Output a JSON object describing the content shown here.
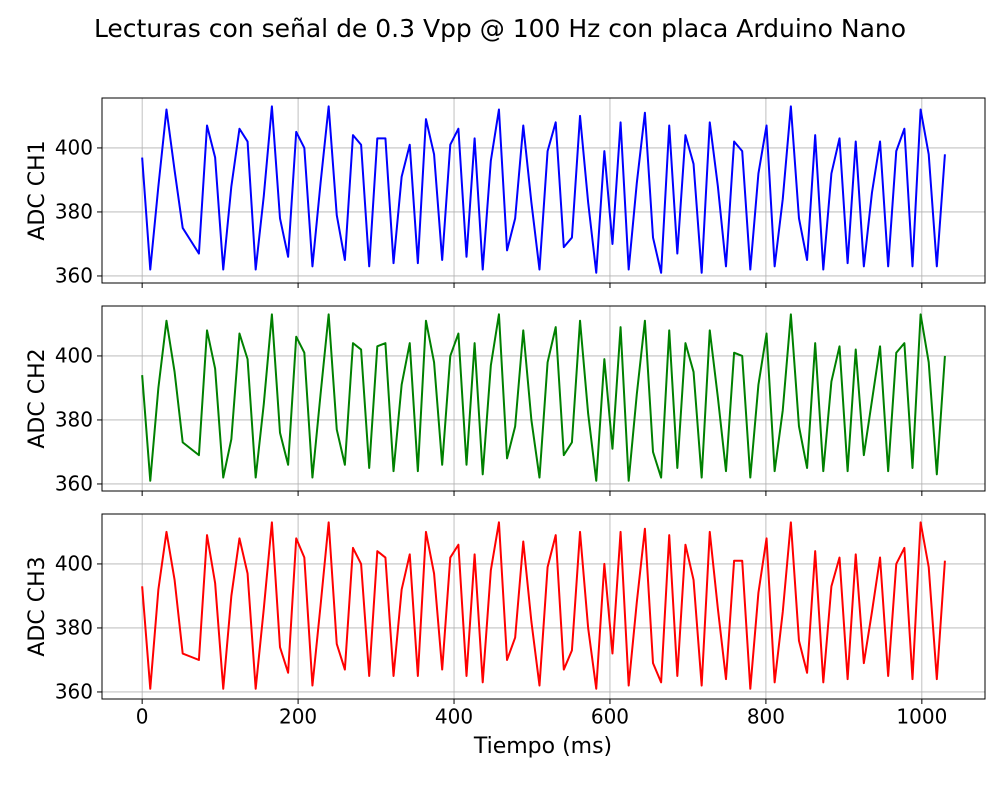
{
  "chart_data": {
    "type": "line",
    "subplots": true,
    "grid": true,
    "title": "Lecturas con señal de 0.3 Vpp @ 100 Hz con placa Arduino Nano",
    "xlabel": "Tiempo (ms)",
    "x": [
      0,
      10.4,
      20.8,
      31.2,
      41.6,
      52,
      62.4,
      72.8,
      83.2,
      93.6,
      104,
      114.4,
      124.8,
      135.2,
      145.6,
      156,
      166.4,
      176.8,
      187.2,
      197.6,
      208,
      218.4,
      228.8,
      239.2,
      249.6,
      260,
      270.4,
      280.8,
      291.2,
      301.6,
      312,
      322.4,
      332.8,
      343.2,
      353.6,
      364,
      374.4,
      384.8,
      395.2,
      405.6,
      416,
      426.4,
      436.8,
      447.2,
      457.6,
      468,
      478.4,
      488.8,
      499.2,
      509.6,
      520,
      530.4,
      540.8,
      551.2,
      561.6,
      572,
      582.4,
      592.8,
      603.2,
      613.6,
      624,
      634.4,
      644.8,
      655.2,
      665.6,
      676,
      686.4,
      696.8,
      707.2,
      717.6,
      728,
      738.4,
      748.8,
      759.2,
      769.6,
      780,
      790.4,
      800.8,
      811.2,
      821.6,
      832,
      842.4,
      852.8,
      863.2,
      873.6,
      884,
      894.4,
      904.8,
      915.2,
      925.6,
      936,
      946.4,
      956.8,
      967.2,
      977.6,
      988,
      998.4,
      1008.8,
      1019.2,
      1029.6
    ],
    "xlim": [
      -51.5,
      1081
    ],
    "xticks": [
      0,
      200,
      400,
      600,
      800,
      1000
    ],
    "ylim": [
      357.8,
      415.6
    ],
    "yticks": [
      360,
      380,
      400
    ],
    "series": [
      {
        "name": "ADC CH1",
        "color": "#0000ff",
        "values": [
          397,
          362,
          388,
          412,
          393,
          375,
          371,
          367,
          407,
          397,
          362,
          388,
          406,
          402,
          362,
          385,
          413,
          378,
          366,
          405,
          400,
          363,
          389,
          413,
          379,
          365,
          404,
          401,
          363,
          403,
          403,
          364,
          391,
          401,
          364,
          409,
          398,
          365,
          401,
          406,
          366,
          403,
          362,
          396,
          412,
          368,
          378,
          407,
          383,
          362,
          399,
          408,
          369,
          372,
          410,
          383,
          361,
          399,
          370,
          408,
          362,
          389,
          411,
          372,
          361,
          407,
          367,
          404,
          395,
          361,
          408,
          388,
          363,
          402,
          399,
          362,
          392,
          407,
          363,
          384,
          413,
          378,
          365,
          404,
          362,
          392,
          403,
          364,
          402,
          363,
          386,
          402,
          363,
          399,
          406,
          363,
          412,
          398,
          363,
          398
        ]
      },
      {
        "name": "ADC CH2",
        "color": "#008000",
        "values": [
          394,
          361,
          390,
          411,
          395,
          373,
          371,
          369,
          408,
          396,
          362,
          374,
          407,
          399,
          362,
          385,
          413,
          376,
          366,
          406,
          401,
          362,
          388,
          413,
          377,
          366,
          404,
          402,
          365,
          403,
          404,
          364,
          391,
          404,
          364,
          411,
          398,
          366,
          400,
          407,
          366,
          404,
          363,
          397,
          413,
          368,
          378,
          408,
          380,
          362,
          398,
          409,
          369,
          373,
          411,
          382,
          361,
          399,
          371,
          409,
          361,
          388,
          411,
          370,
          362,
          408,
          365,
          404,
          395,
          362,
          408,
          387,
          364,
          401,
          400,
          362,
          391,
          407,
          364,
          383,
          413,
          378,
          365,
          404,
          364,
          392,
          403,
          364,
          402,
          369,
          386,
          403,
          364,
          401,
          404,
          365,
          413,
          398,
          363,
          400
        ]
      },
      {
        "name": "ADC CH3",
        "color": "#ff0000",
        "values": [
          393,
          361,
          392,
          410,
          395,
          372,
          371,
          370,
          409,
          394,
          361,
          390,
          408,
          397,
          361,
          386,
          413,
          374,
          366,
          408,
          402,
          362,
          387,
          413,
          375,
          367,
          405,
          400,
          365,
          404,
          402,
          365,
          392,
          403,
          365,
          410,
          397,
          367,
          402,
          406,
          365,
          403,
          363,
          398,
          413,
          370,
          377,
          407,
          382,
          362,
          399,
          409,
          367,
          373,
          410,
          380,
          361,
          400,
          372,
          410,
          362,
          388,
          411,
          369,
          363,
          409,
          365,
          406,
          395,
          362,
          410,
          386,
          364,
          401,
          401,
          361,
          391,
          408,
          363,
          385,
          413,
          376,
          366,
          404,
          363,
          393,
          402,
          364,
          403,
          369,
          385,
          402,
          365,
          400,
          405,
          364,
          413,
          399,
          364,
          401
        ]
      }
    ]
  }
}
